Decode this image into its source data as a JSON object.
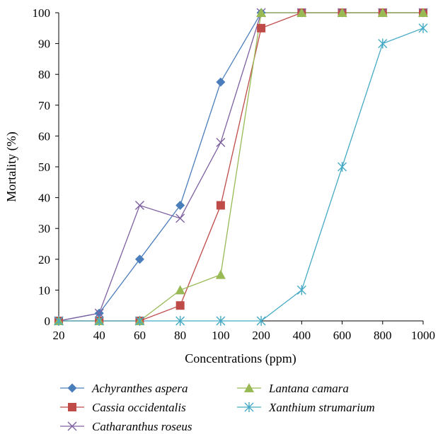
{
  "chart_data": {
    "type": "line",
    "xlabel": "Concentrations (ppm)",
    "ylabel": "Mortality (%)",
    "categories": [
      "20",
      "40",
      "60",
      "80",
      "100",
      "200",
      "400",
      "600",
      "800",
      "1000"
    ],
    "yticks": [
      "0",
      "10",
      "20",
      "30",
      "40",
      "50",
      "60",
      "70",
      "80",
      "90",
      "100"
    ],
    "ylim": [
      0,
      100
    ],
    "grid": false,
    "legend_position": "bottom",
    "series": [
      {
        "name": "Achyranthes aspera",
        "color": "#4a7ebb",
        "marker": "diamond",
        "values": [
          0,
          2.5,
          20,
          37.5,
          77.5,
          100,
          100,
          100,
          100,
          100
        ]
      },
      {
        "name": "Cassia occidentalis",
        "color": "#be4b48",
        "marker": "square",
        "values": [
          0,
          0,
          0,
          5,
          37.5,
          95,
          100,
          100,
          100,
          100
        ]
      },
      {
        "name": "Catharanthus roseus",
        "color": "#7d60a0",
        "marker": "x",
        "values": [
          0,
          2.5,
          37.5,
          33.3,
          57.9,
          100,
          100,
          100,
          100,
          100
        ]
      },
      {
        "name": "Lantana camara",
        "color": "#98b954",
        "marker": "triangle",
        "values": [
          0,
          0,
          0,
          10,
          15,
          100,
          100,
          100,
          100,
          100
        ]
      },
      {
        "name": "Xanthium strumarium",
        "color": "#46aac5",
        "marker": "star",
        "values": [
          0,
          0,
          0,
          0,
          0,
          0,
          10,
          50,
          90,
          95
        ]
      }
    ]
  }
}
